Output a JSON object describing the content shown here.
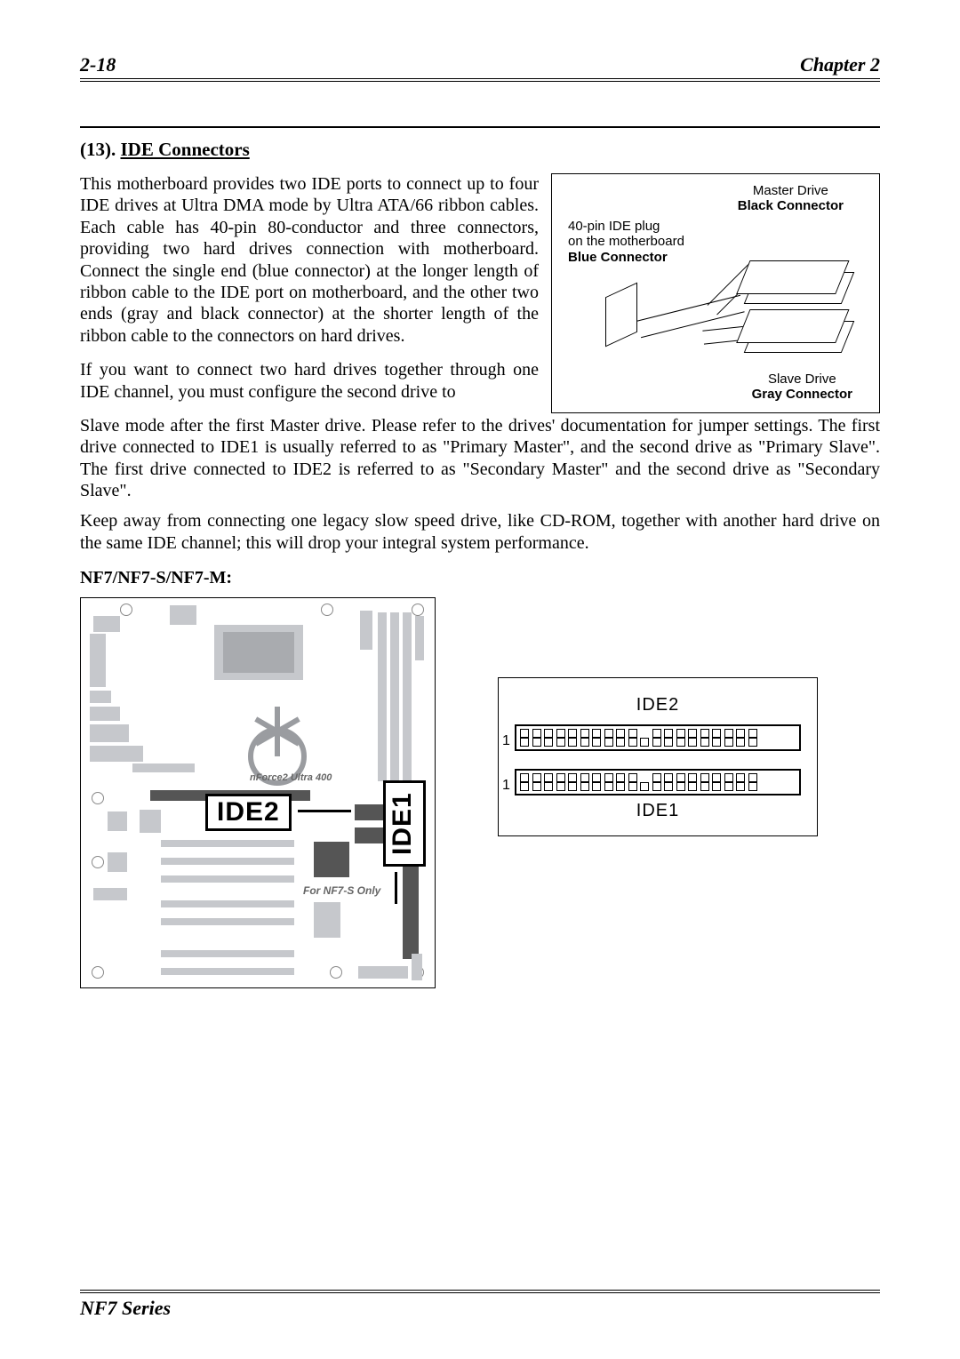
{
  "header": {
    "page_num": "2-18",
    "chapter": "Chapter 2"
  },
  "section": {
    "number": "(13).",
    "title": "IDE Connectors"
  },
  "paragraphs": {
    "p1": "This motherboard provides two IDE ports to connect up to four IDE drives at Ultra DMA mode by Ultra ATA/66 ribbon cables. Each cable has 40-pin 80-conductor and three connectors, providing two hard drives connection with motherboard. Connect the single end (blue connector) at the longer length of ribbon cable to the IDE port on motherboard, and the other two ends (gray and black connector) at the shorter length of the ribbon cable to the connectors on hard drives.",
    "p2": "If you want to connect two hard drives together through one IDE channel, you must configure the second drive to",
    "p3": "Slave mode after the first Master drive. Please refer to the drives' documentation for jumper settings. The first drive connected to IDE1 is usually referred to as \"Primary Master\", and the second drive as \"Primary Slave\". The first drive connected to IDE2 is referred to as \"Secondary Master\" and the second drive as \"Secondary Slave\".",
    "p4": "Keep away from connecting one legacy slow speed drive, like CD-ROM, together with another hard drive on the same IDE channel; this will drop your integral system performance."
  },
  "cable_diagram": {
    "master_line1": "Master Drive",
    "master_line2": "Black Connector",
    "blue_line1": "40-pin IDE plug",
    "blue_line2": "on the motherboard",
    "blue_line3": "Blue Connector",
    "slave_line1": "Slave Drive",
    "slave_line2": "Gray Connector"
  },
  "models_label": "NF7/NF7-S/NF7-M:",
  "mobo": {
    "ide1": "IDE1",
    "ide2": "IDE2",
    "nf7s_only": "For NF7-S Only",
    "nforce": "nForce2 Ultra 400"
  },
  "pinout": {
    "ide2": "IDE2",
    "ide1": "IDE1",
    "pin1": "1",
    "top_row_count": 20,
    "bottom_row_count": 20,
    "gap_index": 10
  },
  "footer": "NF7 Series",
  "colors": {
    "text": "#000000",
    "bg": "#ffffff",
    "mobo_gray": "#c6c8cc",
    "mobo_line": "#8a8c90"
  }
}
